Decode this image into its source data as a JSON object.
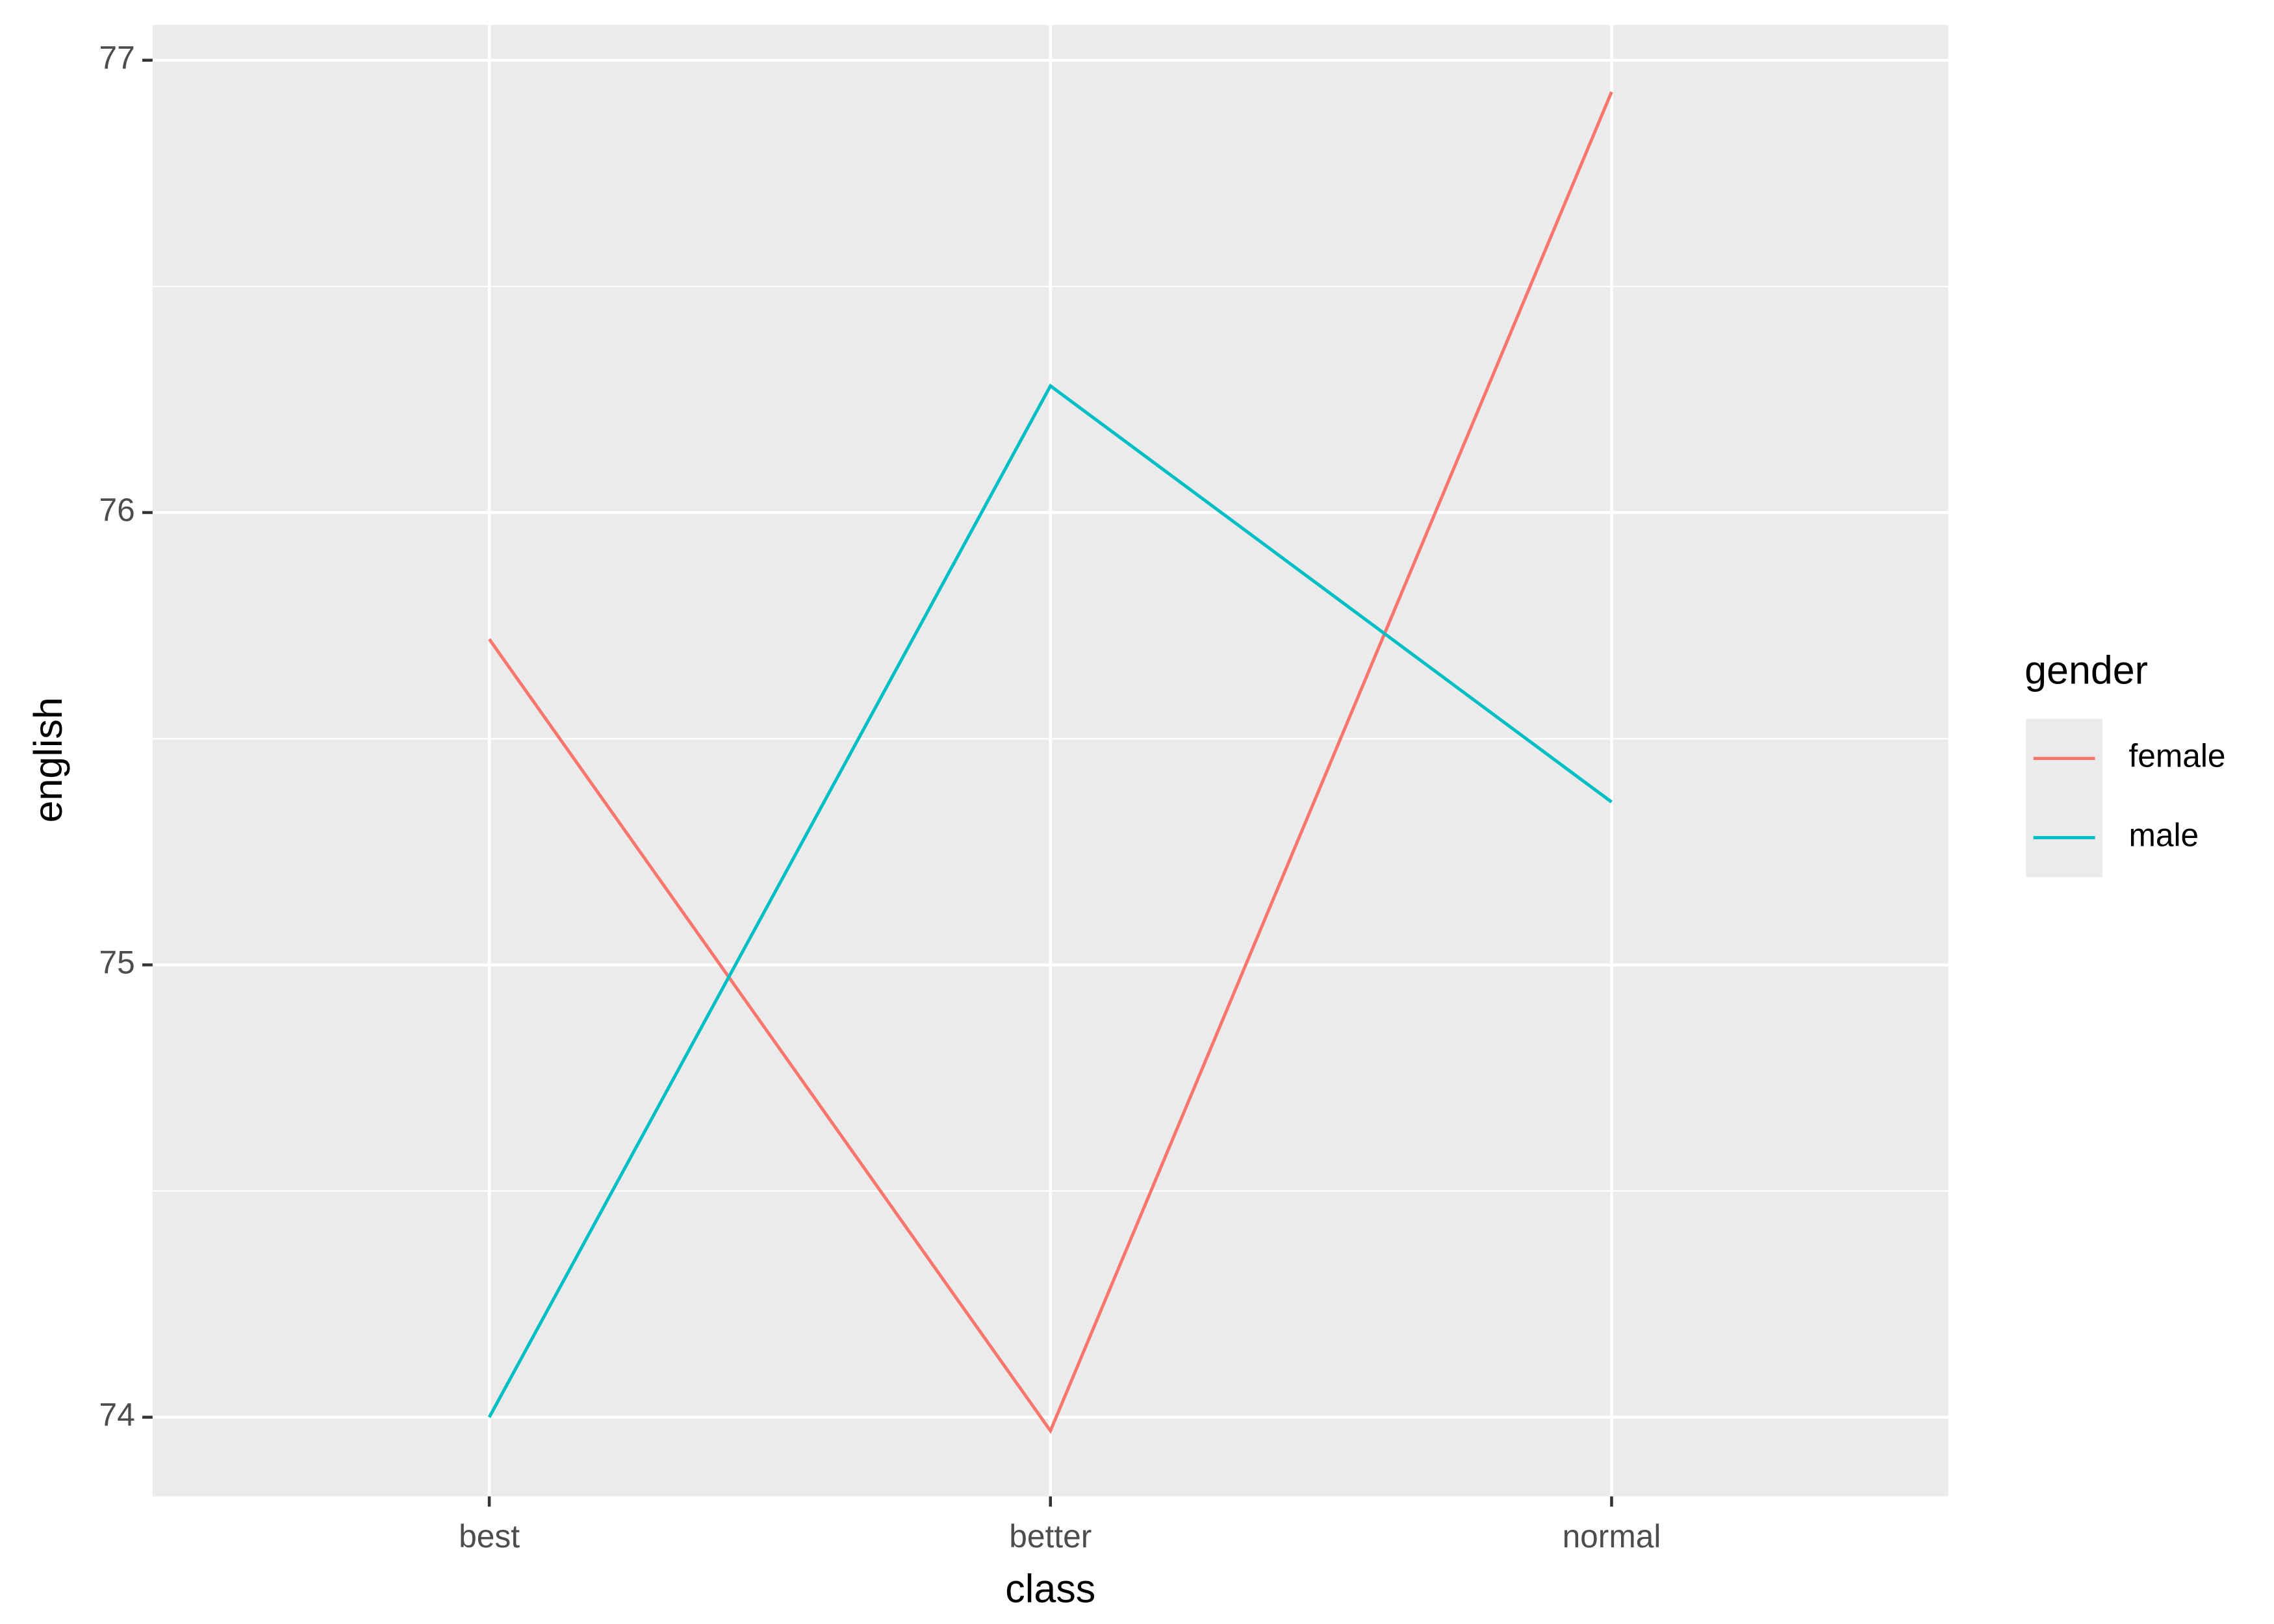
{
  "chart_data": {
    "type": "line",
    "x_label": "class",
    "y_label": "english",
    "legend_title": "gender",
    "legend_position": "right",
    "categories": [
      "best",
      "better",
      "normal"
    ],
    "series": [
      {
        "name": "female",
        "color": "#f8766d",
        "values": [
          75.72,
          73.97,
          76.93
        ]
      },
      {
        "name": "male",
        "color": "#00bfc4",
        "values": [
          74.0,
          76.28,
          75.36
        ]
      }
    ],
    "ylim": [
      73.825,
      77.078
    ],
    "yticks": [
      74,
      75,
      76,
      77
    ],
    "grid": true,
    "panel_color": "#ebebeb"
  }
}
